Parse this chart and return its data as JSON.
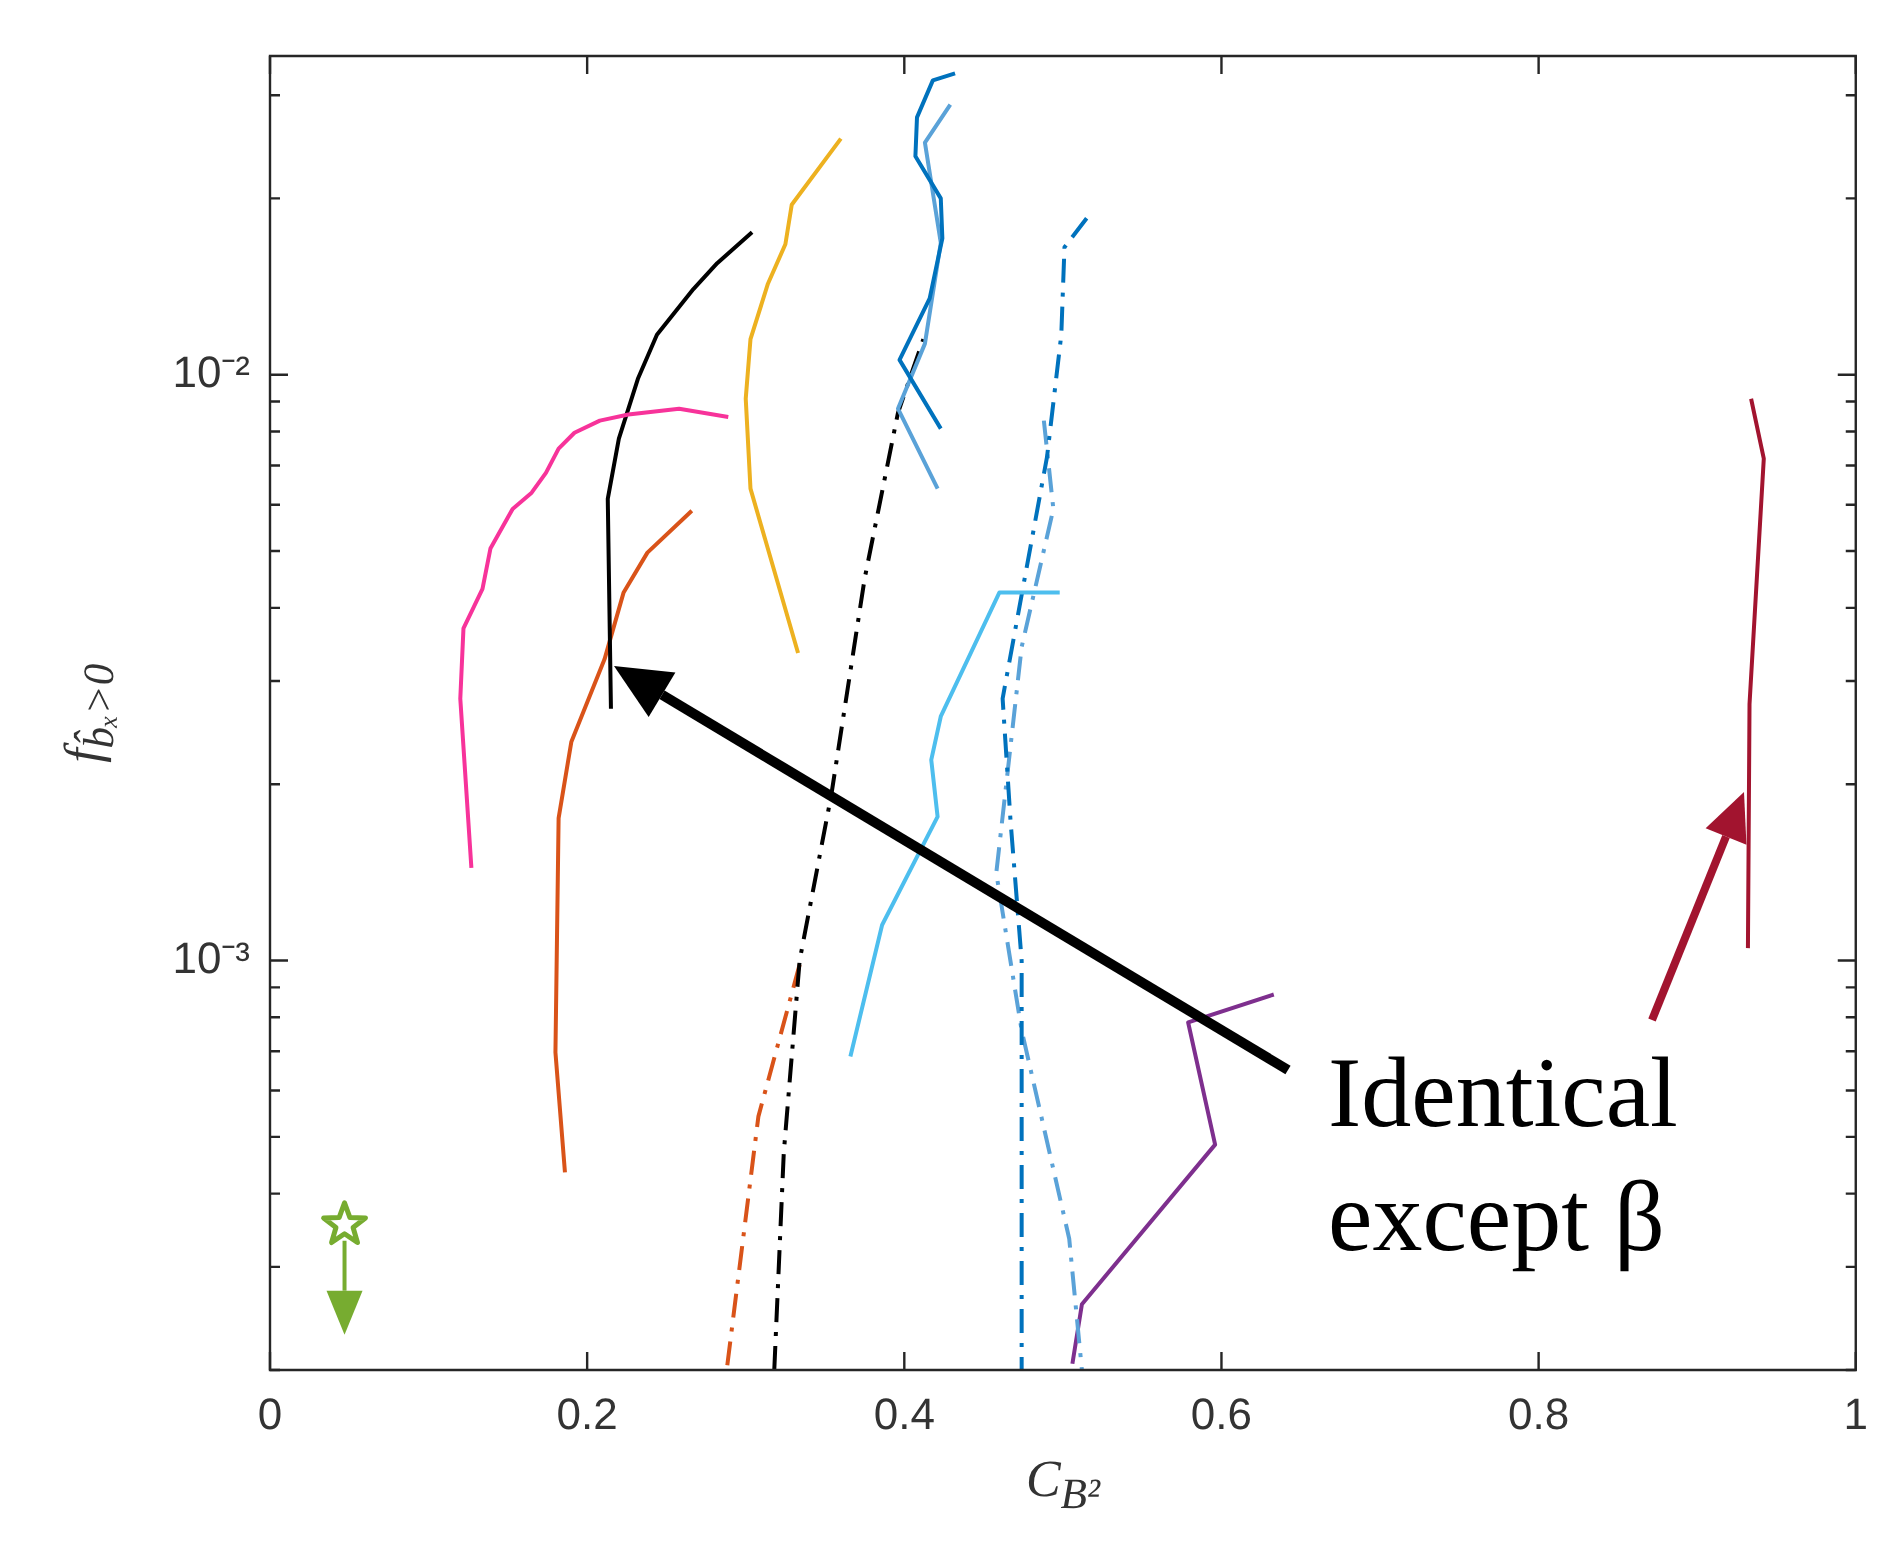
{
  "chart_data": {
    "type": "line",
    "xlabel": "C$_{B²}$",
    "ylabel": "f$_{b̂ₓ>0}$",
    "log": "y",
    "grid": false,
    "legend": false,
    "marker": "none",
    "xlim": [
      0,
      1
    ],
    "xticks": [
      0,
      0.2,
      0.4,
      0.6,
      0.8,
      1
    ],
    "ylim": [
      0.0002,
      0.035
    ],
    "yticks": [
      {
        "value": 0.0002,
        "label": null
      },
      {
        "value": 0.0003,
        "label": null
      },
      {
        "value": 0.0004,
        "label": null
      },
      {
        "value": 0.0005,
        "label": null
      },
      {
        "value": 0.0006,
        "label": null
      },
      {
        "value": 0.0007,
        "label": null
      },
      {
        "value": 0.0008,
        "label": null
      },
      {
        "value": 0.0009,
        "label": null
      },
      {
        "value": 0.001,
        "label": "10⁻³"
      },
      {
        "value": 0.002,
        "label": null
      },
      {
        "value": 0.003,
        "label": null
      },
      {
        "value": 0.004,
        "label": null
      },
      {
        "value": 0.005,
        "label": null
      },
      {
        "value": 0.006,
        "label": null
      },
      {
        "value": 0.007,
        "label": null
      },
      {
        "value": 0.008,
        "label": null
      },
      {
        "value": 0.009,
        "label": null
      },
      {
        "value": 0.01,
        "label": "10⁻²"
      },
      {
        "value": 0.02,
        "label": null
      },
      {
        "value": 0.03,
        "label": null
      }
    ],
    "annotations": [
      "Identical except β"
    ],
    "series": [
      {
        "color": "#f7339a",
        "line_style": "solid",
        "x": [
          0.127,
          0.12,
          0.122,
          0.134,
          0.139,
          0.153,
          0.165,
          0.174,
          0.182,
          0.192,
          0.208,
          0.226,
          0.258,
          0.289
        ],
        "values": [
          0.00144,
          0.0028,
          0.00369,
          0.00431,
          0.00505,
          0.0059,
          0.00629,
          0.0068,
          0.00748,
          0.00796,
          0.00835,
          0.00855,
          0.00875,
          0.00847
        ]
      },
      {
        "color": "#000000",
        "line_style": "solid",
        "x": [
          0.215,
          0.213,
          0.22,
          0.232,
          0.244,
          0.267,
          0.282,
          0.304
        ],
        "values": [
          0.00269,
          0.00614,
          0.00778,
          0.00984,
          0.0117,
          0.014,
          0.0155,
          0.0175
        ]
      },
      {
        "color": "#d95319",
        "line_style": "solid",
        "x": [
          0.186,
          0.18,
          0.182,
          0.19,
          0.211,
          0.223,
          0.238,
          0.266
        ],
        "values": [
          0.000435,
          0.000697,
          0.00175,
          0.00236,
          0.00327,
          0.00425,
          0.00497,
          0.00586
        ]
      },
      {
        "color": "#edb120",
        "line_style": "solid",
        "x": [
          0.333,
          0.303,
          0.3,
          0.303,
          0.314,
          0.325,
          0.329,
          0.36
        ],
        "values": [
          0.00335,
          0.00639,
          0.0091,
          0.0115,
          0.0143,
          0.0167,
          0.0195,
          0.0253
        ]
      },
      {
        "color": "#0072bd",
        "line_style": "solid",
        "x": [
          0.432,
          0.418,
          0.408,
          0.407,
          0.423,
          0.424,
          0.416,
          0.397,
          0.423
        ],
        "values": [
          0.0327,
          0.0318,
          0.0275,
          0.0236,
          0.02,
          0.0171,
          0.0135,
          0.0106,
          0.00809
        ]
      },
      {
        "color": "#5aa2d8",
        "line_style": "solid",
        "x": [
          0.429,
          0.413,
          0.423,
          0.413,
          0.396,
          0.421
        ],
        "values": [
          0.0289,
          0.0249,
          0.0168,
          0.0113,
          0.00875,
          0.00639
        ]
      },
      {
        "color": "#000000",
        "line_style": "dashdot",
        "x": [
          0.318,
          0.324,
          0.334,
          0.354,
          0.375,
          0.396,
          0.412
        ],
        "values": [
          0.0002,
          0.00047,
          0.001,
          0.00192,
          0.00449,
          0.00861,
          0.0115
        ]
      },
      {
        "color": "#d95319",
        "line_style": "dashdot",
        "x": [
          0.334,
          0.308,
          0.288
        ],
        "values": [
          0.000984,
          0.000542,
          0.0002
        ]
      },
      {
        "color": "#4dbeee",
        "line_style": "solid",
        "x": [
          0.366,
          0.386,
          0.421,
          0.417,
          0.423,
          0.46,
          0.498
        ],
        "values": [
          0.000686,
          0.00115,
          0.00176,
          0.0022,
          0.00261,
          0.00425,
          0.00425
        ]
      },
      {
        "color": "#0072bd",
        "line_style": "dashdot",
        "x": [
          0.515,
          0.501,
          0.499,
          0.49,
          0.474,
          0.462,
          0.467,
          0.474,
          0.474
        ],
        "values": [
          0.0185,
          0.0165,
          0.0117,
          0.00724,
          0.00421,
          0.0028,
          0.00173,
          0.001,
          0.0002
        ]
      },
      {
        "color": "#5aa2d8",
        "line_style": "dashdot",
        "x": [
          0.488,
          0.494,
          0.474,
          0.458,
          0.474,
          0.504,
          0.512
        ],
        "values": [
          0.00835,
          0.0059,
          0.00343,
          0.00141,
          0.00076,
          0.000335,
          0.0002
        ]
      },
      {
        "color": "#7e2f8e",
        "line_style": "solid",
        "x": [
          0.506,
          0.512,
          0.596,
          0.579,
          0.633
        ],
        "values": [
          0.000205,
          0.000259,
          0.000485,
          0.000784,
          0.000875
        ]
      },
      {
        "color": "#a2142f",
        "line_style": "solid",
        "x": [
          0.932,
          0.933,
          0.942,
          0.934
        ],
        "values": [
          0.00105,
          0.00274,
          0.00719,
          0.0091
        ]
      },
      {
        "type": "scatter",
        "marker": "star",
        "color": "#77ac30",
        "x": [
          0.047
        ],
        "values": [
          0.000354
        ]
      }
    ]
  }
}
